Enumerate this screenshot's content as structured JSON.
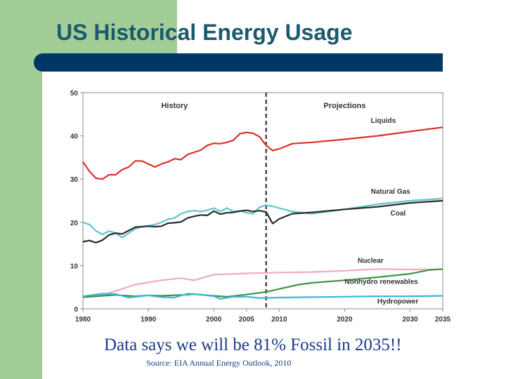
{
  "slide": {
    "title": "US Historical Energy Usage",
    "caption": "Data says we will be 81% Fossil in 2035!!",
    "source": "Source:  EIA Annual  Energy  Outlook,  2010"
  },
  "colors": {
    "panel_green": "#a3cd96",
    "title_teal": "#1a5a6e",
    "bar_navy": "#003766",
    "caption_blue": "#1e3a8a"
  },
  "chart_data": {
    "type": "line",
    "title": "",
    "xlabel": "",
    "ylabel": "",
    "xlim": [
      1980,
      2035
    ],
    "ylim": [
      0,
      50
    ],
    "x_ticks": [
      1980,
      1990,
      2000,
      2005,
      2010,
      2020,
      2030,
      2035
    ],
    "y_ticks": [
      0,
      10,
      20,
      30,
      40,
      50
    ],
    "divider_x": 2008,
    "region_labels": [
      {
        "text": "History",
        "x": 1994
      },
      {
        "text": "Projections",
        "x": 2020
      }
    ],
    "grid": false,
    "series": [
      {
        "name": "Liquids",
        "color": "#d9332b",
        "x": [
          1980,
          1981,
          1982,
          1983,
          1984,
          1985,
          1986,
          1987,
          1988,
          1989,
          1990,
          1991,
          1992,
          1993,
          1994,
          1995,
          1996,
          1997,
          1998,
          1999,
          2000,
          2001,
          2002,
          2003,
          2004,
          2005,
          2006,
          2007,
          2008,
          2009,
          2010,
          2012,
          2015,
          2020,
          2025,
          2030,
          2035
        ],
        "values": [
          34,
          31.8,
          30.2,
          30,
          31,
          31,
          32.2,
          32.8,
          34.2,
          34.2,
          33.5,
          32.8,
          33.5,
          34,
          34.7,
          34.5,
          35.7,
          36.2,
          36.7,
          37.8,
          38.3,
          38.2,
          38.5,
          39,
          40.5,
          40.8,
          40.6,
          39.8,
          37.8,
          36.6,
          37,
          38.2,
          38.5,
          39.2,
          40,
          41,
          42
        ]
      },
      {
        "name": "Natural Gas",
        "color": "#5ec7cc",
        "x": [
          1980,
          1981,
          1982,
          1983,
          1984,
          1985,
          1986,
          1987,
          1988,
          1989,
          1990,
          1991,
          1992,
          1993,
          1994,
          1995,
          1996,
          1997,
          1998,
          1999,
          2000,
          2001,
          2002,
          2003,
          2004,
          2005,
          2006,
          2007,
          2008,
          2009,
          2010,
          2012,
          2015,
          2020,
          2025,
          2030,
          2035
        ],
        "values": [
          20,
          19.5,
          18,
          17.2,
          18,
          17.5,
          16.5,
          17.5,
          18.5,
          19,
          19.2,
          19.5,
          20,
          20.7,
          21,
          22,
          22.5,
          22.7,
          22.5,
          22.8,
          23.3,
          22.5,
          23.3,
          22.5,
          22.7,
          22.2,
          22,
          23.5,
          24,
          23.7,
          23.3,
          22.5,
          22,
          23,
          24.2,
          25,
          25.5
        ]
      },
      {
        "name": "Coal",
        "color": "#2b2b2b",
        "x": [
          1980,
          1981,
          1982,
          1983,
          1984,
          1985,
          1986,
          1987,
          1988,
          1989,
          1990,
          1991,
          1992,
          1993,
          1994,
          1995,
          1996,
          1997,
          1998,
          1999,
          2000,
          2001,
          2002,
          2003,
          2004,
          2005,
          2006,
          2007,
          2008,
          2009,
          2010,
          2012,
          2015,
          2020,
          2025,
          2030,
          2035
        ],
        "values": [
          15.5,
          15.8,
          15.3,
          15.9,
          17.1,
          17.5,
          17.3,
          18.1,
          18.9,
          19,
          19.1,
          19,
          19.1,
          19.8,
          19.9,
          20.1,
          21,
          21.4,
          21.7,
          21.6,
          22.6,
          21.9,
          22.2,
          22.3,
          22.6,
          22.8,
          22.5,
          22.7,
          22.4,
          19.7,
          20.8,
          22,
          22.3,
          23,
          23.6,
          24.5,
          25
        ]
      },
      {
        "name": "Nuclear",
        "color": "#f2a9c1",
        "x": [
          1980,
          1983,
          1985,
          1988,
          1990,
          1992,
          1995,
          1997,
          2000,
          2005,
          2010,
          2015,
          2020,
          2025,
          2030,
          2035
        ],
        "values": [
          2.7,
          3.2,
          4.1,
          5.6,
          6.1,
          6.6,
          7.1,
          6.6,
          7.9,
          8.2,
          8.4,
          8.5,
          8.8,
          9.2,
          9.1,
          9.1
        ]
      },
      {
        "name": "Nonhydro renewables",
        "color": "#3d9444",
        "x": [
          1980,
          1983,
          1985,
          1988,
          1990,
          1992,
          1995,
          1997,
          2000,
          2002,
          2005,
          2008,
          2010,
          2013,
          2015,
          2020,
          2025,
          2030,
          2033,
          2035
        ],
        "values": [
          2.7,
          3,
          3.2,
          2.9,
          3.1,
          3,
          3.2,
          3.4,
          3,
          2.8,
          3.3,
          3.9,
          4.6,
          5.6,
          6,
          6.6,
          7.3,
          8.1,
          9,
          9.2
        ]
      },
      {
        "name": "Hydropower",
        "color": "#3ab7dc",
        "x": [
          1980,
          1983,
          1985,
          1987,
          1990,
          1992,
          1994,
          1996,
          1998,
          2000,
          2001,
          2003,
          2005,
          2007,
          2010,
          2015,
          2020,
          2025,
          2030,
          2035
        ],
        "values": [
          2.9,
          3.5,
          3.4,
          2.6,
          3.1,
          2.7,
          2.6,
          3.5,
          3.3,
          2.9,
          2.3,
          2.8,
          2.8,
          2.5,
          2.6,
          2.7,
          2.8,
          2.9,
          2.9,
          3
        ]
      }
    ]
  }
}
